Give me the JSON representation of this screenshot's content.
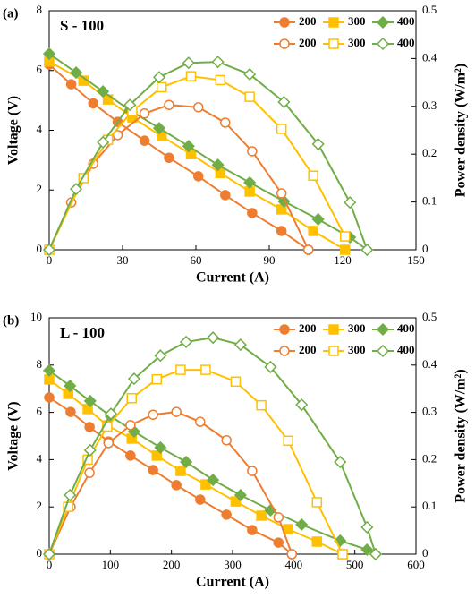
{
  "chart_data": [
    {
      "type": "line",
      "panel_label": "(a)",
      "annotation": "S - 100",
      "x_label": "Current (A)",
      "y_label": "Voltage (V)",
      "y2_label": "Power density (W/m²)",
      "xlim": [
        0,
        150
      ],
      "xticks": [
        0,
        30,
        60,
        90,
        120,
        150
      ],
      "ylim": [
        0,
        8
      ],
      "yticks": [
        0,
        2,
        4,
        6,
        8
      ],
      "y2lim": [
        0,
        0.5
      ],
      "y2ticks": [
        0,
        0.1,
        0.2,
        0.3,
        0.4,
        0.5
      ],
      "series": [
        {
          "name": "200",
          "color": "#ed7d31",
          "marker": "circle",
          "filled": true,
          "x": [
            0,
            9,
            18,
            28,
            39,
            49,
            61,
            72,
            83,
            95,
            106
          ],
          "values": [
            6.2,
            5.54,
            4.9,
            4.28,
            3.65,
            3.08,
            2.46,
            1.83,
            1.23,
            0.63,
            0
          ]
        },
        {
          "name": "300",
          "color": "#ffc000",
          "marker": "square",
          "filled": true,
          "x": [
            0,
            14,
            24,
            34,
            46,
            58,
            70,
            82,
            95,
            108,
            121
          ],
          "values": [
            6.3,
            5.66,
            5.03,
            4.43,
            3.8,
            3.2,
            2.57,
            1.95,
            1.35,
            0.63,
            0
          ]
        },
        {
          "name": "400",
          "color": "#70ad47",
          "marker": "diamond",
          "filled": true,
          "x": [
            0,
            11,
            22,
            33,
            45,
            57,
            69,
            82,
            96,
            110,
            123,
            130
          ],
          "values": [
            6.56,
            5.93,
            5.3,
            4.67,
            4.07,
            3.47,
            2.84,
            2.25,
            1.62,
            1.02,
            0.42,
            0
          ]
        },
        {
          "name": "200",
          "color": "#ed7d31",
          "marker": "circle",
          "filled": false,
          "axis": "y2",
          "x": [
            0,
            9,
            18,
            28,
            39,
            49,
            61,
            72,
            83,
            95,
            106
          ],
          "values": [
            0,
            0.099,
            0.18,
            0.24,
            0.285,
            0.303,
            0.298,
            0.266,
            0.206,
            0.118,
            0
          ]
        },
        {
          "name": "300",
          "color": "#ffc000",
          "marker": "square",
          "filled": false,
          "axis": "y2",
          "x": [
            0,
            14,
            24,
            34,
            46,
            58,
            70,
            82,
            95,
            108,
            121
          ],
          "values": [
            0,
            0.15,
            0.23,
            0.29,
            0.34,
            0.363,
            0.355,
            0.32,
            0.253,
            0.155,
            0.028
          ]
        },
        {
          "name": "400",
          "color": "#70ad47",
          "marker": "diamond",
          "filled": false,
          "axis": "y2",
          "x": [
            0,
            11,
            22,
            33,
            45,
            57,
            69,
            82,
            96,
            110,
            123,
            130
          ],
          "values": [
            0,
            0.127,
            0.225,
            0.303,
            0.361,
            0.391,
            0.393,
            0.367,
            0.309,
            0.221,
            0.099,
            0
          ]
        }
      ]
    },
    {
      "type": "line",
      "panel_label": "(b)",
      "annotation": "L - 100",
      "x_label": "Current (A)",
      "y_label": "Voltage (V)",
      "y2_label": "Power density (W/m²)",
      "xlim": [
        0,
        600
      ],
      "xticks": [
        0,
        100,
        200,
        300,
        400,
        500,
        600
      ],
      "ylim": [
        0,
        10
      ],
      "yticks": [
        0,
        2,
        4,
        6,
        8,
        10
      ],
      "y2lim": [
        0,
        0.5
      ],
      "y2ticks": [
        0,
        0.1,
        0.2,
        0.3,
        0.4,
        0.5
      ],
      "series": [
        {
          "name": "200",
          "color": "#ed7d31",
          "marker": "circle",
          "filled": true,
          "x": [
            0,
            35,
            66,
            97,
            133,
            170,
            208,
            247,
            290,
            332,
            375,
            397
          ],
          "values": [
            6.63,
            6.02,
            5.38,
            4.77,
            4.17,
            3.56,
            2.92,
            2.31,
            1.67,
            1.02,
            0.49,
            0
          ]
        },
        {
          "name": "300",
          "color": "#ffc000",
          "marker": "square",
          "filled": true,
          "x": [
            0,
            31,
            63,
            95,
            135,
            176,
            215,
            256,
            305,
            347,
            391,
            438,
            480
          ],
          "values": [
            7.39,
            6.78,
            6.14,
            5.45,
            4.89,
            4.17,
            3.52,
            2.95,
            2.23,
            1.63,
            1.06,
            0.53,
            0
          ]
        },
        {
          "name": "400",
          "color": "#70ad47",
          "marker": "diamond",
          "filled": true,
          "x": [
            0,
            34,
            67,
            101,
            139,
            182,
            224,
            268,
            313,
            362,
            413,
            476,
            520,
            534
          ],
          "values": [
            7.77,
            7.12,
            6.48,
            5.83,
            5.19,
            4.51,
            3.9,
            3.14,
            2.5,
            1.86,
            1.25,
            0.57,
            0.19,
            0
          ]
        },
        {
          "name": "200",
          "color": "#ed7d31",
          "marker": "circle",
          "filled": false,
          "axis": "y2",
          "x": [
            0,
            35,
            66,
            97,
            133,
            170,
            208,
            247,
            290,
            332,
            375,
            397
          ],
          "values": [
            0,
            0.1,
            0.172,
            0.235,
            0.273,
            0.295,
            0.301,
            0.28,
            0.241,
            0.176,
            0.078,
            0
          ]
        },
        {
          "name": "300",
          "color": "#ffc000",
          "marker": "square",
          "filled": false,
          "axis": "y2",
          "x": [
            0,
            31,
            63,
            95,
            135,
            176,
            215,
            256,
            305,
            347,
            391,
            438,
            480
          ],
          "values": [
            0,
            0.1,
            0.2,
            0.27,
            0.33,
            0.37,
            0.39,
            0.39,
            0.365,
            0.315,
            0.24,
            0.11,
            0
          ]
        },
        {
          "name": "400",
          "color": "#70ad47",
          "marker": "diamond",
          "filled": false,
          "axis": "y2",
          "x": [
            0,
            34,
            67,
            101,
            139,
            182,
            224,
            268,
            313,
            362,
            413,
            476,
            520,
            534
          ],
          "values": [
            0,
            0.125,
            0.22,
            0.297,
            0.371,
            0.42,
            0.449,
            0.458,
            0.443,
            0.396,
            0.316,
            0.195,
            0.057,
            0
          ]
        }
      ]
    }
  ]
}
